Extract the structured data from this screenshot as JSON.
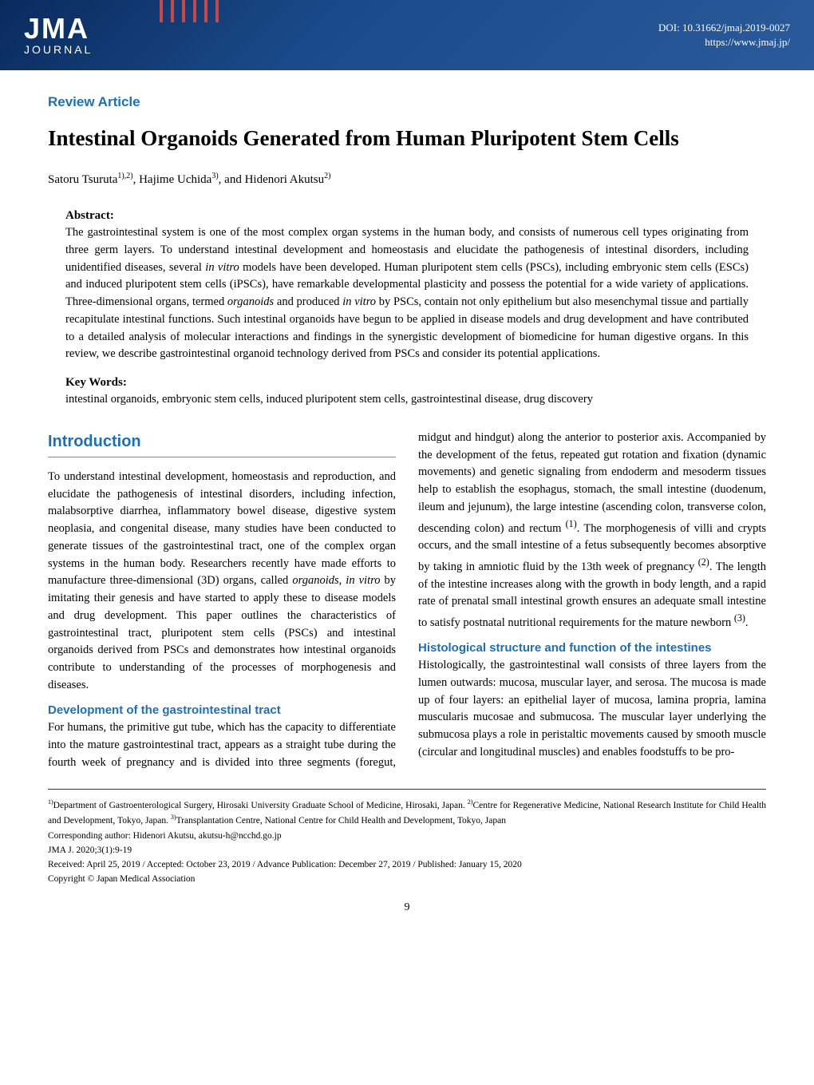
{
  "header": {
    "logo_top": "JMA",
    "logo_bottom": "JOURNAL",
    "doi": "DOI: 10.31662/jmaj.2019-0027",
    "url": "https://www.jmaj.jp/",
    "band_gradient_start": "#0a2a5c",
    "band_gradient_end": "#2a5a9a",
    "tick_color": "#c84848"
  },
  "article": {
    "type": "Review Article",
    "title": "Intestinal Organoids Generated from Human Pluripotent Stem Cells",
    "authors_html": "Satoru Tsuruta<sup>1),2)</sup>, Hajime Uchida<sup>3)</sup>, and Hidenori Akutsu<sup>2)</sup>",
    "accent_color": "#1f6fb2"
  },
  "abstract": {
    "label": "Abstract:",
    "text": "The gastrointestinal system is one of the most complex organ systems in the human body, and consists of numerous cell types originating from three germ layers. To understand intestinal development and homeostasis and elucidate the pathogenesis of intestinal disorders, including unidentified diseases, several in vitro models have been developed. Human pluripotent stem cells (PSCs), including embryonic stem cells (ESCs) and induced pluripotent stem cells (iPSCs), have remarkable developmental plasticity and possess the potential for a wide variety of applications. Three-dimensional organs, termed organoids and produced in vitro by PSCs, contain not only epithelium but also mesenchymal tissue and partially recapitulate intestinal functions. Such intestinal organoids have begun to be applied in disease models and drug development and have contributed to a detailed analysis of molecular interactions and findings in the synergistic development of biomedicine for human digestive organs. In this review, we describe gastrointestinal organoid technology derived from PSCs and consider its potential applications."
  },
  "keywords": {
    "label": "Key Words:",
    "text": "intestinal organoids, embryonic stem cells, induced pluripotent stem cells, gastrointestinal disease, drug discovery"
  },
  "sections": {
    "intro_heading": "Introduction",
    "intro_p1": "To understand intestinal development, homeostasis and reproduction, and elucidate the pathogenesis of intestinal disorders, including infection, malabsorptive diarrhea, inflammatory bowel disease, digestive system neoplasia, and congenital disease, many studies have been conducted to generate tissues of the gastrointestinal tract, one of the complex organ systems in the human body. Researchers recently have made efforts to manufacture three-dimensional (3D) organs, called organoids, in vitro by imitating their genesis and have started to apply these to disease models and drug development. This paper outlines the characteristics of gastrointestinal tract, pluripotent stem cells (PSCs) and intestinal organoids derived from PSCs and demonstrates how intestinal organoids contribute to understanding of the processes of morphogenesis and diseases.",
    "sub1_heading": "Development of the gastrointestinal tract",
    "sub1_text": "For humans, the primitive gut tube, which has the capacity to differentiate into the mature gastrointestinal tract, appears as a straight tube during the fourth week of pregnancy and is divided into three segments (foregut, midgut and hindgut) along the anterior to posterior axis. Accompanied by the development of the fetus, repeated gut rotation and fixation (dynamic movements) and genetic signaling from endoderm and mesoderm tissues help to establish the esophagus, stomach, the small intestine (duodenum, ileum and jejunum), the large intestine (ascending colon, transverse colon, descending colon) and rectum (1). The morphogenesis of villi and crypts occurs, and the small intestine of a fetus subsequently becomes absorptive by taking in amniotic fluid by the 13th week of pregnancy (2). The length of the intestine increases along with the growth in body length, and a rapid rate of prenatal small intestinal growth ensures an adequate small intestine to satisfy postnatal nutritional requirements for the mature newborn (3).",
    "sub2_heading": "Histological structure and function of the intestines",
    "sub2_text": "Histologically, the gastrointestinal wall consists of three layers from the lumen outwards: mucosa, muscular layer, and serosa. The mucosa is made up of four layers: an epithelial layer of mucosa, lamina propria, lamina muscularis mucosae and submucosa. The muscular layer underlying the submucosa plays a role in peristaltic movements caused by smooth muscle (circular and longitudinal muscles) and enables foodstuffs to be pro-"
  },
  "footer": {
    "affiliations_html": "<sup>1)</sup>Department of Gastroenterological Surgery, Hirosaki University Graduate School of Medicine, Hirosaki, Japan. <sup>2)</sup>Centre for Regenerative Medicine, National Research Institute for Child Health and Development, Tokyo, Japan. <sup>3)</sup>Transplantation Centre, National Centre for Child Health and Development, Tokyo, Japan",
    "corresponding": "Corresponding author: Hidenori Akutsu, akutsu-h@ncchd.go.jp",
    "citation": "JMA J. 2020;3(1):9-19",
    "dates": "Received: April 25, 2019 / Accepted: October 23, 2019 / Advance Publication: December 27, 2019 / Published: January 15, 2020",
    "copyright": "Copyright © Japan Medical Association"
  },
  "page_number": "9"
}
